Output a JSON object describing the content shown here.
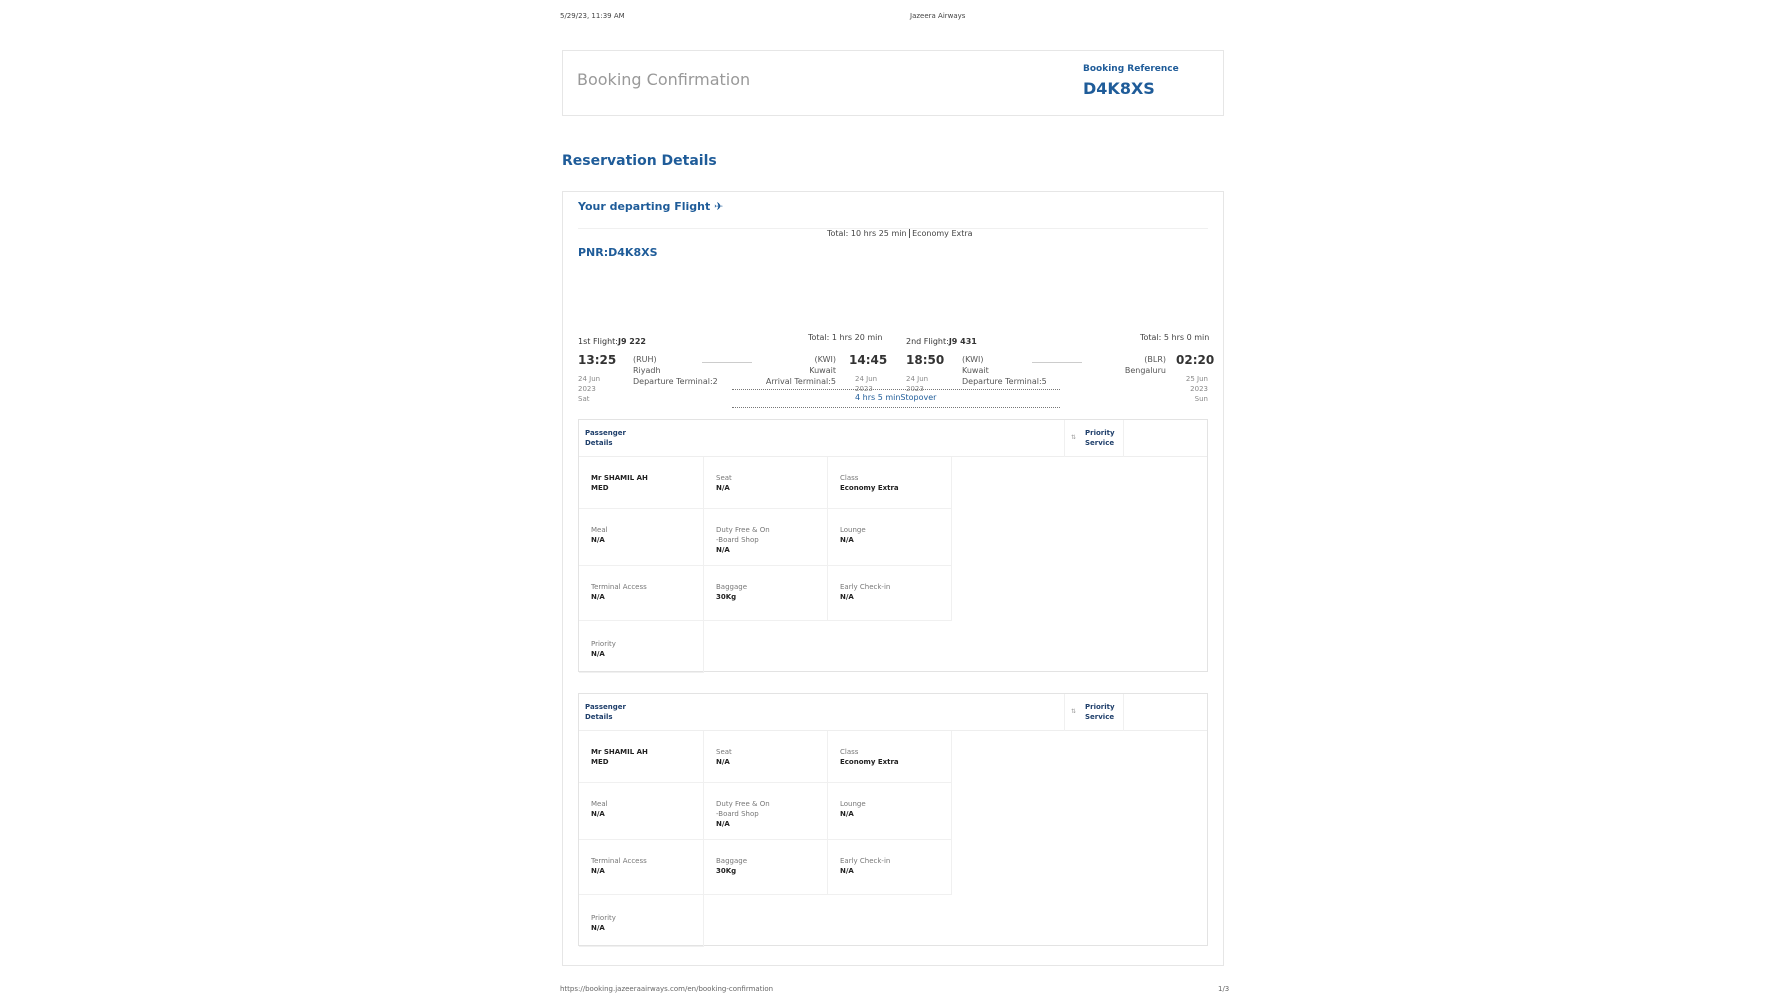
{
  "print_header": {
    "datetime": "5/29/23, 11:39 AM",
    "title": "Jazeera Airways"
  },
  "booking": {
    "title": "Booking Confirmation",
    "ref_label": "Booking Reference",
    "ref": "D4K8XS"
  },
  "section_title": "Reservation Details",
  "flight_card": {
    "heading": "Your departing Flight ✈",
    "summary_total": "Total: 10 hrs 25 min",
    "summary_class": "Economy Extra",
    "pnr": "PNR:D4K8XS",
    "flights": [
      {
        "label": "1st Flight:",
        "number": "J9 222",
        "total": "Total: 1 hrs 20 min",
        "dep_time": "13:25",
        "dep_code": "(RUH)",
        "dep_city": "Riyadh",
        "dep_terminal": "Departure Terminal:2",
        "dep_day": "24 Jun",
        "dep_year": "2023",
        "dep_weekday": "Sat",
        "arr_time": "14:45",
        "arr_code": "(KWI)",
        "arr_city": "Kuwait",
        "arr_terminal": "Arrival Terminal:5",
        "arr_day": "24 Jun",
        "arr_year": "2023"
      },
      {
        "label": "2nd Flight:",
        "number": "J9 431",
        "total": "Total: 5 hrs 0 min",
        "dep_time": "18:50",
        "dep_code": "(KWI)",
        "dep_city": "Kuwait",
        "dep_terminal": "Departure Terminal:5",
        "dep_day": "24 Jun",
        "dep_year": "2023",
        "arr_time": "02:20",
        "arr_code": "(BLR)",
        "arr_city": "Bengaluru",
        "arr_day": "25 Jun",
        "arr_year": "2023",
        "arr_weekday": "Sun"
      }
    ],
    "stopover": "4 hrs 5 minStopover"
  },
  "passengers": [
    {
      "header": "Passenger Details",
      "priority_header": "Priority Service",
      "name": "Mr SHAMIL AH MED",
      "fields": [
        {
          "label": "Seat",
          "value": "N/A"
        },
        {
          "label": "Class",
          "value": "Economy Extra"
        },
        {
          "label": "Meal",
          "value": "N/A"
        },
        {
          "label": "Duty Free & On-Board Shop",
          "value": "N/A"
        },
        {
          "label": "Lounge",
          "value": "N/A"
        },
        {
          "label": "Terminal Access",
          "value": "N/A"
        },
        {
          "label": "Baggage",
          "value": "30Kg"
        },
        {
          "label": "Early Check-in",
          "value": "N/A"
        },
        {
          "label": "Priority",
          "value": "N/A"
        }
      ]
    },
    {
      "header": "Passenger Details",
      "priority_header": "Priority Service",
      "name": "Mr SHAMIL AH MED",
      "fields": [
        {
          "label": "Seat",
          "value": "N/A"
        },
        {
          "label": "Class",
          "value": "Economy Extra"
        },
        {
          "label": "Meal",
          "value": "N/A"
        },
        {
          "label": "Duty Free & On-Board Shop",
          "value": "N/A"
        },
        {
          "label": "Lounge",
          "value": "N/A"
        },
        {
          "label": "Terminal Access",
          "value": "N/A"
        },
        {
          "label": "Baggage",
          "value": "30Kg"
        },
        {
          "label": "Early Check-in",
          "value": "N/A"
        },
        {
          "label": "Priority",
          "value": "N/A"
        }
      ]
    }
  ],
  "print_footer": {
    "url": "https://booking.jazeeraairways.com/en/booking-confirmation",
    "page": "1/3"
  }
}
